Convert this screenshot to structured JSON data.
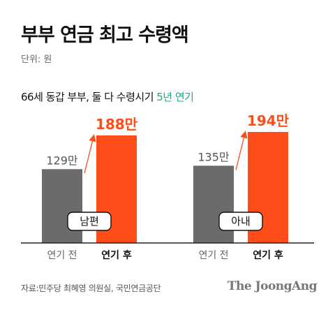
{
  "title": "부부 연금 최고 수령액",
  "unit_label": "단위: 원",
  "subtitle": {
    "main": "66세 동갑 부부, 둘 다 수령시기 ",
    "accent": "5년 연기"
  },
  "source": "자료:민주당 최혜영 의원실, 국민연금공단",
  "logo": "The JoongAng",
  "colors": {
    "before": "#6b6b6b",
    "after": "#ff4d1a",
    "accent": "#1aa98a",
    "axis": "#222222"
  },
  "chart_data": {
    "type": "bar",
    "title": "66세 동갑 부부, 둘 다 수령시기 5년 연기",
    "ylabel": "",
    "xlabel": "",
    "ylim": [
      0,
      194
    ],
    "groups": [
      {
        "name": "남편",
        "bars": [
          {
            "category": "연기 전",
            "value": 129,
            "label": "129만"
          },
          {
            "category": "연기 후",
            "value": 188,
            "label": "188만"
          }
        ]
      },
      {
        "name": "아내",
        "bars": [
          {
            "category": "연기 전",
            "value": 135,
            "label": "135만"
          },
          {
            "category": "연기 후",
            "value": 194,
            "label": "194만"
          }
        ]
      }
    ]
  }
}
